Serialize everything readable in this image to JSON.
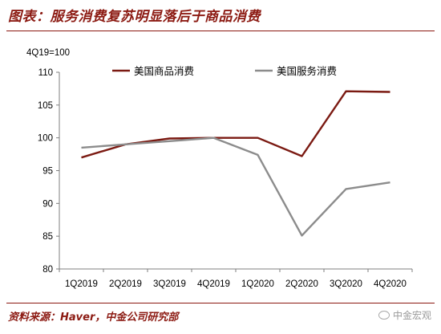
{
  "header": {
    "title": "图表：服务消费复苏明显落后于商品消费"
  },
  "footer": {
    "source": "资料来源：Haver，中金公司研究部",
    "watermark": "中金宏观"
  },
  "colors": {
    "accent": "#8c1a12",
    "goods_line": "#7b1a12",
    "services_line": "#8c8c8c",
    "axis": "#7f7f7f"
  },
  "chart_data": {
    "type": "line",
    "unit_note": "4Q19=100",
    "categories": [
      "1Q2019",
      "2Q2019",
      "3Q2019",
      "4Q2019",
      "1Q2020",
      "2Q2020",
      "3Q2020",
      "4Q2020"
    ],
    "yticks": [
      80,
      85,
      90,
      95,
      100,
      105,
      110
    ],
    "ylim": [
      80,
      110
    ],
    "grid": false,
    "legend_position": "top",
    "series": [
      {
        "name": "美国商品消费",
        "color": "#7b1a12",
        "values": [
          97.0,
          99.0,
          99.9,
          100.0,
          100.0,
          97.2,
          107.1,
          107.0
        ]
      },
      {
        "name": "美国服务消费",
        "color": "#8c8c8c",
        "values": [
          98.5,
          99.0,
          99.5,
          100.0,
          97.4,
          85.1,
          92.2,
          93.2
        ]
      }
    ]
  }
}
